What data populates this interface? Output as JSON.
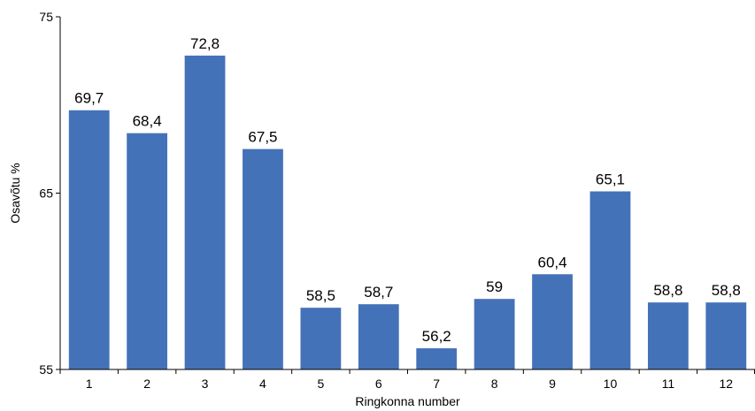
{
  "chart_data": {
    "type": "bar",
    "categories": [
      "1",
      "2",
      "3",
      "4",
      "5",
      "6",
      "7",
      "8",
      "9",
      "10",
      "11",
      "12"
    ],
    "values": [
      69.7,
      68.4,
      72.8,
      67.5,
      58.5,
      58.7,
      56.2,
      59,
      60.4,
      65.1,
      58.8,
      58.8
    ],
    "data_labels": [
      "69,7",
      "68,4",
      "72,8",
      "67,5",
      "58,5",
      "58,7",
      "56,2",
      "59",
      "60,4",
      "65,1",
      "58,8",
      "58,8"
    ],
    "xlabel": "Ringkonna number",
    "ylabel": "Osavõtu %",
    "ylim": [
      55,
      75
    ],
    "yticks": [
      "55",
      "65",
      "75"
    ],
    "bar_color": "#4472b8",
    "grid": false,
    "legend": "none"
  }
}
